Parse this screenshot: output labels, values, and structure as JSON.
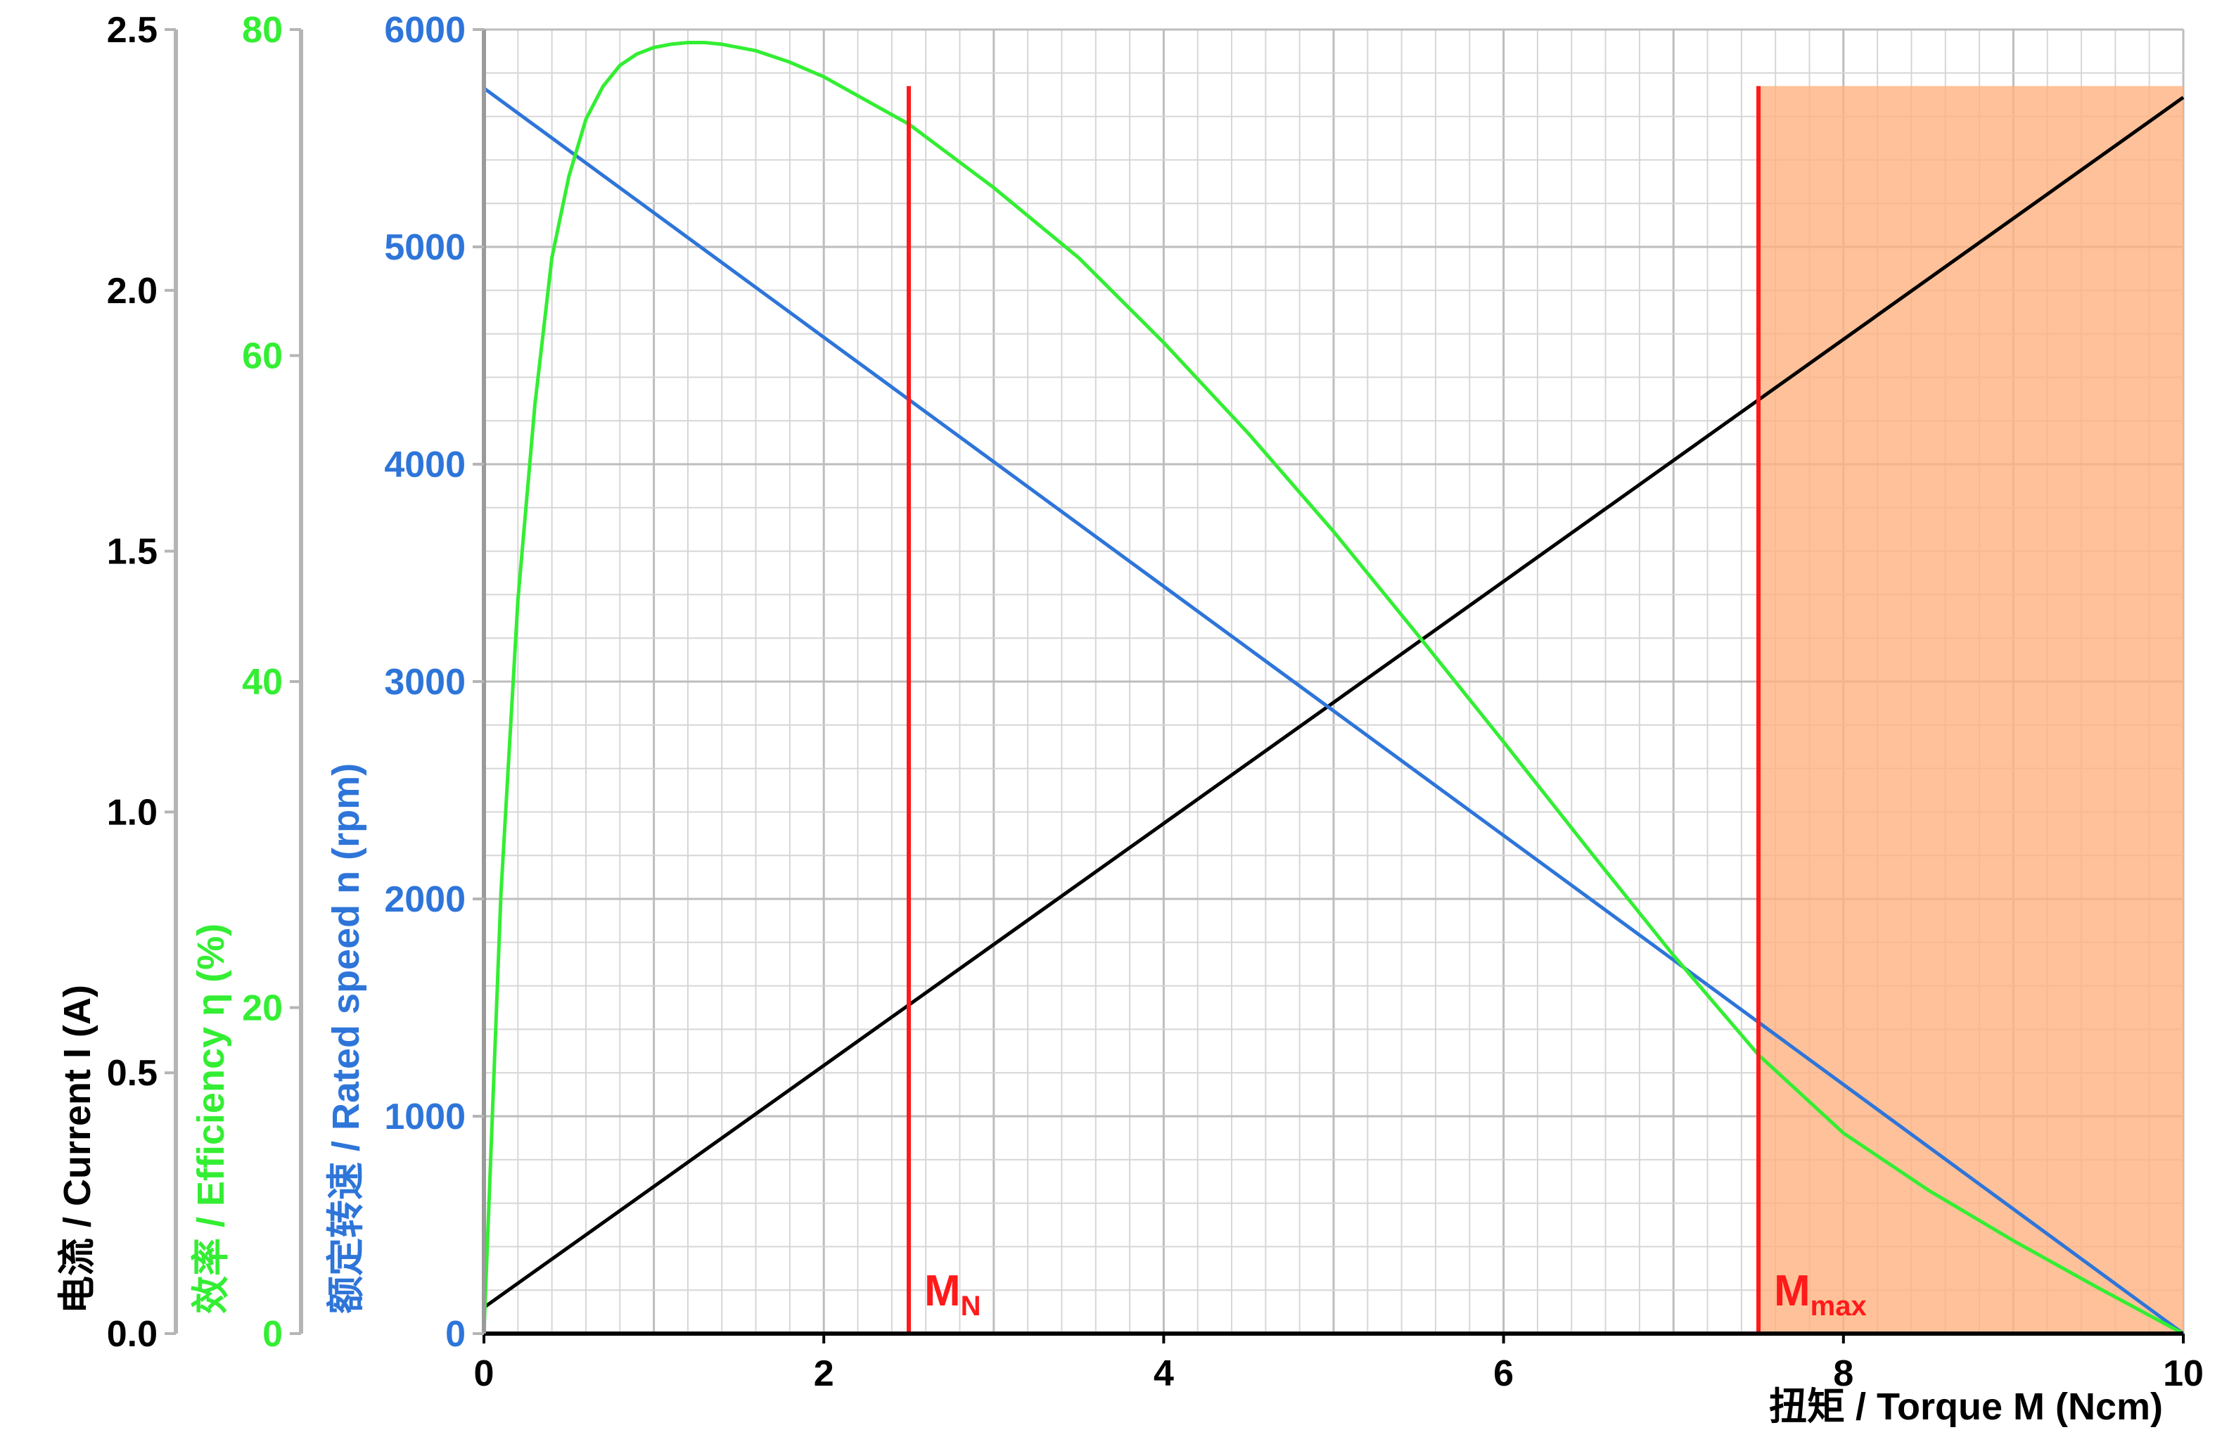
{
  "chart_data": {
    "type": "line",
    "x": {
      "label_cn": "扭矩",
      "label_en": " / Torque M (Ncm)",
      "range": [
        0,
        10
      ],
      "ticks": [
        0,
        2,
        4,
        6,
        8,
        10
      ],
      "tick_labels": [
        "0",
        "2",
        "4",
        "6",
        "8",
        "10"
      ]
    },
    "axes": {
      "current": {
        "label_cn": "电流",
        "label_en": " / Current I (A)",
        "range": [
          0,
          2.5
        ],
        "ticks": [
          0,
          0.5,
          1.0,
          1.5,
          2.0,
          2.5
        ],
        "tick_labels": [
          "0.0",
          "0.5",
          "1.0",
          "1.5",
          "2.0",
          "2.5"
        ],
        "color": "#000000"
      },
      "efficiency": {
        "label_cn": "效率",
        "label_en": " / Efficiency η  (%)",
        "range": [
          0,
          80
        ],
        "ticks": [
          0,
          20,
          40,
          60,
          80
        ],
        "tick_labels": [
          "0",
          "20",
          "40",
          "60",
          "80"
        ],
        "color": "#33ee33"
      },
      "speed": {
        "label_cn": "额定转速",
        "label_en": " / Rated speed n (rpm)",
        "range": [
          0,
          6000
        ],
        "ticks": [
          0,
          1000,
          2000,
          3000,
          4000,
          5000,
          6000
        ],
        "tick_labels": [
          "0",
          "1000",
          "2000",
          "3000",
          "4000",
          "5000",
          "6000"
        ],
        "color": "#2e75d9"
      }
    },
    "series": [
      {
        "axis": "current",
        "color": "#000000",
        "x": [
          0,
          10
        ],
        "y": [
          0.05,
          2.37
        ]
      },
      {
        "axis": "speed",
        "color": "#2e75d9",
        "x": [
          0,
          10
        ],
        "y": [
          5730,
          0
        ]
      },
      {
        "axis": "efficiency",
        "color": "#33ee33",
        "x": [
          0,
          0.1,
          0.2,
          0.3,
          0.4,
          0.5,
          0.6,
          0.7,
          0.8,
          0.9,
          1.0,
          1.1,
          1.2,
          1.3,
          1.4,
          1.6,
          1.8,
          2.0,
          2.5,
          3.0,
          3.5,
          4.0,
          4.5,
          5.0,
          5.5,
          6.0,
          6.5,
          7.0,
          7.5,
          8.0,
          8.5,
          9.0,
          9.5,
          10.0
        ],
        "y": [
          0,
          27,
          45,
          57,
          66,
          71,
          74.5,
          76.5,
          77.8,
          78.5,
          78.9,
          79.1,
          79.2,
          79.2,
          79.1,
          78.7,
          78.0,
          77.1,
          74.2,
          70.3,
          66.0,
          60.8,
          55.2,
          49.2,
          42.8,
          36.3,
          29.7,
          23.2,
          17.1,
          12.3,
          8.8,
          5.7,
          2.8,
          0
        ]
      }
    ],
    "markers": [
      {
        "x": 2.5,
        "label": "M",
        "sub": "N",
        "color": "#ff1a1a"
      },
      {
        "x": 7.5,
        "label": "M",
        "sub": "max",
        "color": "#ff1a1a"
      }
    ],
    "shaded_region": {
      "x_from": 7.5,
      "x_to": 10,
      "speed_top": 5740,
      "color": "#ffb180",
      "opacity": 0.8
    },
    "grid": true,
    "minor_grid_x_step": 0.2,
    "minor_grid_speed_step": 200
  }
}
